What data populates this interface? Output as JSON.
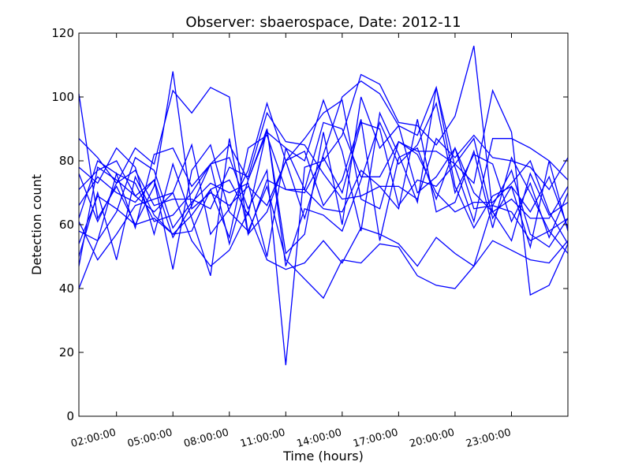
{
  "chart_data": {
    "type": "line",
    "title": "Observer: sbaerospace, Date: 2012-11",
    "xlabel": "Time (hours)",
    "ylabel": "Detection count",
    "x_hours": [
      0,
      1,
      2,
      3,
      4,
      5,
      6,
      7,
      8,
      9,
      10,
      11,
      12,
      13,
      14,
      15,
      16,
      17,
      18,
      19,
      20,
      21,
      22,
      23,
      24,
      25,
      26
    ],
    "xlim": [
      0,
      26
    ],
    "ylim": [
      0,
      120
    ],
    "x_ticks": [
      {
        "hour": 2,
        "label": "02:00:00"
      },
      {
        "hour": 5,
        "label": "05:00:00"
      },
      {
        "hour": 8,
        "label": "08:00:00"
      },
      {
        "hour": 11,
        "label": "11:00:00"
      },
      {
        "hour": 14,
        "label": "14:00:00"
      },
      {
        "hour": 17,
        "label": "17:00:00"
      },
      {
        "hour": 20,
        "label": "20:00:00"
      },
      {
        "hour": 23,
        "label": "23:00:00"
      }
    ],
    "y_ticks": [
      0,
      20,
      40,
      60,
      80,
      100,
      120
    ],
    "line_color": "#0000ff",
    "grid": false,
    "series": [
      {
        "values": [
          101,
          62,
          72,
          60,
          72,
          108,
          65,
          70,
          66,
          72,
          66,
          80,
          87,
          95,
          99,
          68,
          65,
          86,
          82,
          70,
          64,
          67,
          67,
          73,
          80,
          64,
          54
        ]
      },
      {
        "values": [
          87,
          81,
          73,
          84,
          79,
          102,
          95,
          103,
          100,
          57,
          64,
          80,
          62,
          82,
          100,
          105,
          101,
          91,
          88,
          103,
          72,
          59,
          69,
          72,
          53,
          80,
          58
        ]
      },
      {
        "values": [
          62,
          80,
          76,
          73,
          61,
          63,
          70,
          79,
          81,
          65,
          77,
          16,
          78,
          80,
          88,
          107,
          104,
          92,
          91,
          85,
          94,
          116,
          64,
          68,
          62,
          62,
          72
        ]
      },
      {
        "values": [
          40,
          55,
          76,
          59,
          82,
          84,
          72,
          79,
          54,
          74,
          89,
          84,
          71,
          92,
          90,
          75,
          75,
          86,
          83,
          83,
          79,
          73,
          102,
          89,
          38,
          41,
          54
        ]
      },
      {
        "values": [
          76,
          61,
          73,
          77,
          66,
          68,
          68,
          65,
          78,
          75,
          95,
          86,
          85,
          76,
          68,
          69,
          72,
          72,
          68,
          87,
          81,
          88,
          81,
          80,
          78,
          71,
          81
        ]
      },
      {
        "values": [
          58,
          55,
          64,
          81,
          77,
          59,
          67,
          73,
          70,
          73,
          50,
          84,
          80,
          99,
          83,
          58,
          95,
          82,
          67,
          103,
          78,
          61,
          87,
          87,
          84,
          80,
          74
        ]
      },
      {
        "values": [
          54,
          69,
          65,
          60,
          62,
          57,
          58,
          71,
          56,
          84,
          88,
          71,
          70,
          81,
          70,
          92,
          90,
          66,
          74,
          72,
          79,
          87,
          62,
          72,
          64,
          75,
          59
        ]
      },
      {
        "values": [
          66,
          75,
          70,
          67,
          74,
          56,
          66,
          79,
          85,
          74,
          90,
          47,
          65,
          63,
          58,
          74,
          92,
          79,
          85,
          98,
          70,
          82,
          79,
          61,
          73,
          56,
          70
        ]
      },
      {
        "values": [
          50,
          70,
          49,
          75,
          63,
          57,
          63,
          71,
          74,
          63,
          90,
          51,
          57,
          89,
          60,
          100,
          84,
          91,
          70,
          75,
          84,
          70,
          64,
          55,
          76,
          63,
          67
        ]
      },
      {
        "values": [
          71,
          77,
          80,
          69,
          64,
          70,
          85,
          57,
          65,
          77,
          98,
          80,
          83,
          66,
          74,
          93,
          55,
          81,
          84,
          68,
          84,
          65,
          66,
          77,
          57,
          53,
          62
        ]
      },
      {
        "values": [
          78,
          73,
          84,
          78,
          57,
          79,
          62,
          44,
          87,
          57,
          74,
          71,
          71,
          65,
          64,
          77,
          72,
          65,
          93,
          64,
          67,
          83,
          59,
          81,
          70,
          58,
          62
        ]
      },
      {
        "values": [
          47,
          78,
          74,
          69,
          74,
          46,
          77,
          85,
          64,
          58,
          72,
          49,
          43,
          37,
          49,
          48,
          54,
          53,
          44,
          41,
          40,
          47,
          55,
          52,
          49,
          48,
          55
        ]
      },
      {
        "values": [
          61,
          49,
          57,
          66,
          68,
          70,
          55,
          47,
          52,
          64,
          49,
          46,
          48,
          55,
          48,
          59,
          57,
          54,
          47,
          56,
          51,
          47,
          66,
          64,
          55,
          58,
          51
        ]
      }
    ]
  }
}
